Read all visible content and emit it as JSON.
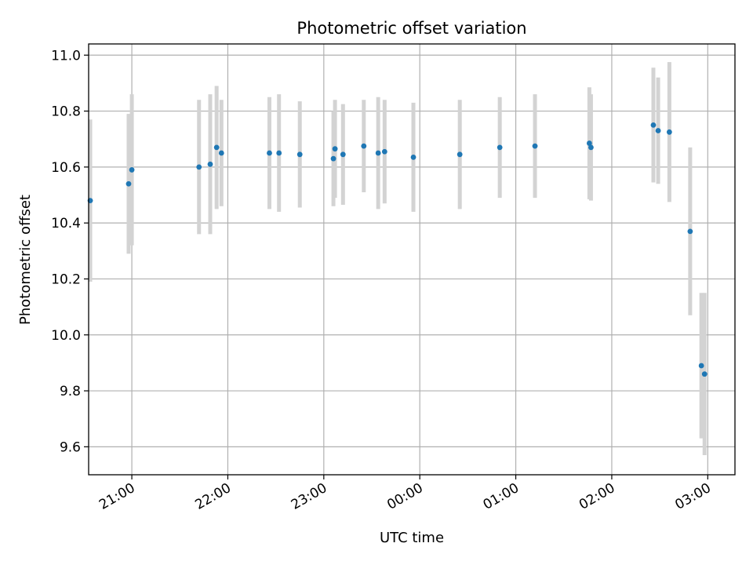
{
  "chart_data": {
    "type": "scatter",
    "title": "Photometric offset variation",
    "xlabel": "UTC time",
    "ylabel": "Photometric offset",
    "x_is_time": true,
    "xlim": [
      "20:33",
      "03:17"
    ],
    "ylim": [
      9.5,
      11.04
    ],
    "x_ticks": [
      "21:00",
      "22:00",
      "23:00",
      "00:00",
      "01:00",
      "02:00",
      "03:00"
    ],
    "y_ticks": [
      "9.6",
      "9.8",
      "10.0",
      "10.2",
      "10.4",
      "10.6",
      "10.8",
      "11.0"
    ],
    "grid": true,
    "marker_color": "#1f77b4",
    "errorbar_color": "#d3d3d3",
    "points": [
      {
        "t": "20:34",
        "y": 10.48,
        "err": 0.29
      },
      {
        "t": "20:58",
        "y": 10.54,
        "err": 0.25
      },
      {
        "t": "21:00",
        "y": 10.59,
        "err": 0.27
      },
      {
        "t": "21:42",
        "y": 10.6,
        "err": 0.24
      },
      {
        "t": "21:49",
        "y": 10.61,
        "err": 0.25
      },
      {
        "t": "21:53",
        "y": 10.67,
        "err": 0.22
      },
      {
        "t": "21:56",
        "y": 10.65,
        "err": 0.19
      },
      {
        "t": "22:26",
        "y": 10.65,
        "err": 0.2
      },
      {
        "t": "22:32",
        "y": 10.65,
        "err": 0.21
      },
      {
        "t": "22:45",
        "y": 10.645,
        "err": 0.19
      },
      {
        "t": "23:06",
        "y": 10.63,
        "err": 0.17
      },
      {
        "t": "23:07",
        "y": 10.665,
        "err": 0.175
      },
      {
        "t": "23:12",
        "y": 10.645,
        "err": 0.18
      },
      {
        "t": "23:25",
        "y": 10.675,
        "err": 0.165
      },
      {
        "t": "23:34",
        "y": 10.65,
        "err": 0.2
      },
      {
        "t": "23:38",
        "y": 10.655,
        "err": 0.185
      },
      {
        "t": "23:56",
        "y": 10.635,
        "err": 0.195
      },
      {
        "t": "00:25",
        "y": 10.645,
        "err": 0.195
      },
      {
        "t": "00:50",
        "y": 10.67,
        "err": 0.18
      },
      {
        "t": "01:12",
        "y": 10.675,
        "err": 0.185
      },
      {
        "t": "01:46",
        "y": 10.685,
        "err": 0.2
      },
      {
        "t": "01:47",
        "y": 10.67,
        "err": 0.19
      },
      {
        "t": "02:26",
        "y": 10.75,
        "err": 0.205
      },
      {
        "t": "02:29",
        "y": 10.73,
        "err": 0.19
      },
      {
        "t": "02:36",
        "y": 10.725,
        "err": 0.25
      },
      {
        "t": "02:49",
        "y": 10.37,
        "err": 0.3
      },
      {
        "t": "02:56",
        "y": 9.89,
        "err": 0.26
      },
      {
        "t": "02:58",
        "y": 9.86,
        "err": 0.29
      }
    ]
  }
}
